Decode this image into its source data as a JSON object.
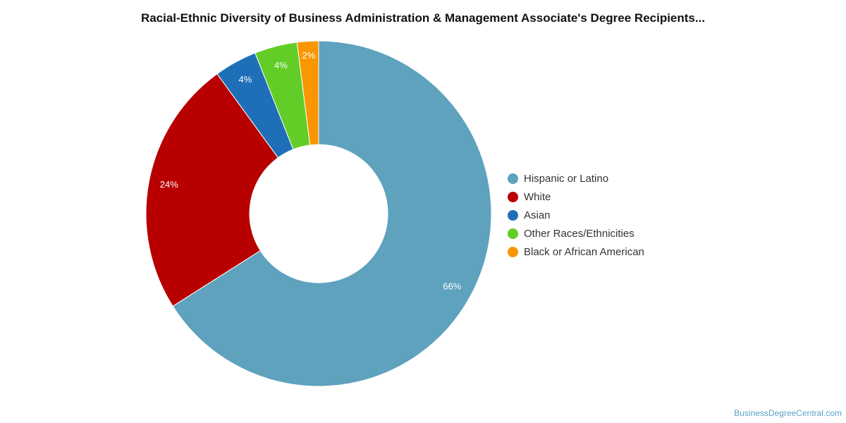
{
  "chart_data": {
    "type": "pie",
    "title": "Racial-Ethnic Diversity of Business Administration & Management Associate's Degree Recipients...",
    "donut": true,
    "legend_position": "right",
    "slices": [
      {
        "label": "Hispanic or Latino",
        "value": 66,
        "display": "66%",
        "color": "#5ea2be"
      },
      {
        "label": "White",
        "value": 24,
        "display": "24%",
        "color": "#b80000"
      },
      {
        "label": "Asian",
        "value": 4,
        "display": "4%",
        "color": "#1f6fb8"
      },
      {
        "label": "Other Races/Ethnicities",
        "value": 4,
        "display": "4%",
        "color": "#62cd26"
      },
      {
        "label": "Black or African American",
        "value": 2,
        "display": "2%",
        "color": "#f99602"
      }
    ]
  },
  "source": {
    "text": "BusinessDegreeCentral.com"
  }
}
